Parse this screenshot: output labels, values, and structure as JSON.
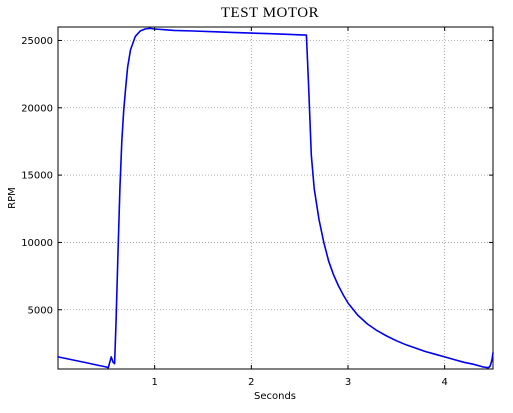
{
  "chart_data": {
    "type": "line",
    "title": "TEST MOTOR",
    "xlabel": "Seconds",
    "ylabel": "RPM",
    "xlim": [
      0.0,
      4.5
    ],
    "ylim": [
      600,
      26000
    ],
    "xticks": [
      1,
      2,
      3,
      4
    ],
    "xtick_labels": [
      "1",
      "2",
      "3",
      "4"
    ],
    "yticks": [
      5000,
      10000,
      15000,
      20000,
      25000
    ],
    "ytick_labels": [
      "5000",
      "10000",
      "15000",
      "20000",
      "25000"
    ],
    "grid": true,
    "series": [
      {
        "color": "#0000ee",
        "x": [
          0.0,
          0.1,
          0.2,
          0.3,
          0.4,
          0.5,
          0.52,
          0.55,
          0.57,
          0.585,
          0.6,
          0.62,
          0.64,
          0.66,
          0.68,
          0.7,
          0.72,
          0.75,
          0.8,
          0.85,
          0.9,
          0.95,
          1.0,
          1.1,
          1.2,
          1.4,
          1.6,
          1.8,
          2.0,
          2.2,
          2.4,
          2.55,
          2.57,
          2.59,
          2.62,
          2.65,
          2.7,
          2.75,
          2.8,
          2.85,
          2.9,
          2.95,
          3.0,
          3.1,
          3.2,
          3.3,
          3.4,
          3.5,
          3.6,
          3.7,
          3.8,
          3.9,
          4.0,
          4.1,
          4.2,
          4.3,
          4.4,
          4.45,
          4.47,
          4.49,
          4.5
        ],
        "y": [
          1500,
          1350,
          1200,
          1050,
          900,
          750,
          700,
          1500,
          1100,
          1000,
          4000,
          9000,
          14000,
          17500,
          19800,
          21500,
          23000,
          24300,
          25300,
          25700,
          25850,
          25900,
          25850,
          25800,
          25750,
          25700,
          25650,
          25600,
          25550,
          25500,
          25450,
          25400,
          25400,
          22000,
          16500,
          14000,
          11700,
          10000,
          8600,
          7600,
          6800,
          6100,
          5500,
          4600,
          3950,
          3450,
          3050,
          2700,
          2400,
          2150,
          1900,
          1700,
          1500,
          1300,
          1100,
          950,
          750,
          700,
          800,
          1300,
          1800
        ]
      }
    ]
  }
}
